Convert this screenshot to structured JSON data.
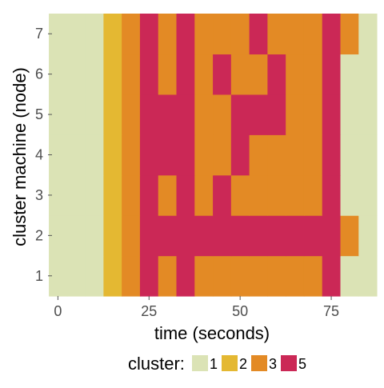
{
  "chart_data": {
    "type": "heatmap",
    "xlabel": "time (seconds)",
    "ylabel": "cluster machine (node)",
    "x_ticks": [
      0,
      25,
      50,
      75
    ],
    "y_ticks": [
      1,
      2,
      3,
      4,
      5,
      6,
      7
    ],
    "x_categories": [
      0,
      5,
      10,
      15,
      20,
      25,
      30,
      35,
      40,
      45,
      50,
      55,
      60,
      65,
      70,
      75,
      80,
      85
    ],
    "y_categories": [
      1,
      2,
      3,
      4,
      5,
      6,
      7
    ],
    "xlim": [
      -2.5,
      87.5
    ],
    "grid": true,
    "legend": {
      "title": "cluster:",
      "position": "bottom",
      "entries": [
        {
          "label": "1",
          "color": "#dbe3b5"
        },
        {
          "label": "2",
          "color": "#e4b832"
        },
        {
          "label": "3",
          "color": "#e38a25"
        },
        {
          "label": "5",
          "color": "#cb2856"
        }
      ]
    },
    "cells": [
      {
        "node": 1,
        "clusters": [
          "1",
          "1",
          "1",
          "2",
          "3",
          "5",
          "3",
          "5",
          "3",
          "3",
          "3",
          "3",
          "3",
          "3",
          "3",
          "5",
          "1",
          "1"
        ]
      },
      {
        "node": 2,
        "clusters": [
          "1",
          "1",
          "1",
          "2",
          "3",
          "5",
          "5",
          "5",
          "5",
          "5",
          "5",
          "5",
          "5",
          "5",
          "5",
          "5",
          "3",
          "1"
        ]
      },
      {
        "node": 3,
        "clusters": [
          "1",
          "1",
          "1",
          "2",
          "3",
          "5",
          "3",
          "5",
          "3",
          "5",
          "3",
          "3",
          "3",
          "3",
          "3",
          "5",
          "1",
          "1"
        ]
      },
      {
        "node": 4,
        "clusters": [
          "1",
          "1",
          "1",
          "2",
          "3",
          "5",
          "5",
          "5",
          "3",
          "3",
          "5",
          "3",
          "3",
          "3",
          "3",
          "5",
          "1",
          "1"
        ]
      },
      {
        "node": 5,
        "clusters": [
          "1",
          "1",
          "1",
          "2",
          "3",
          "5",
          "5",
          "5",
          "3",
          "3",
          "5",
          "5",
          "5",
          "3",
          "3",
          "5",
          "1",
          "1"
        ]
      },
      {
        "node": 6,
        "clusters": [
          "1",
          "1",
          "1",
          "2",
          "3",
          "5",
          "3",
          "5",
          "3",
          "5",
          "3",
          "3",
          "5",
          "3",
          "3",
          "5",
          "1",
          "1"
        ]
      },
      {
        "node": 7,
        "clusters": [
          "1",
          "1",
          "1",
          "2",
          "3",
          "5",
          "3",
          "5",
          "3",
          "3",
          "3",
          "5",
          "3",
          "3",
          "3",
          "5",
          "3",
          "1"
        ]
      }
    ]
  }
}
